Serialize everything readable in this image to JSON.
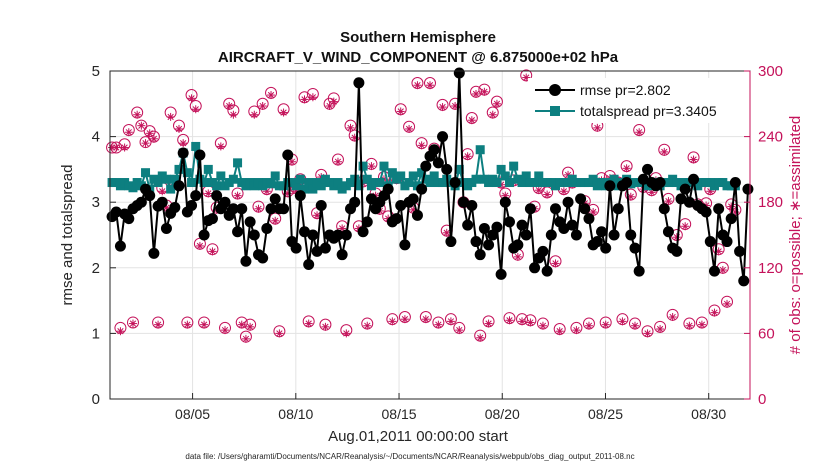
{
  "colors": {
    "rmse": "#000000",
    "totalspread": "#0d7f80",
    "obs": "#c4125a",
    "grid": "#e3e3e3",
    "axis": "#262626"
  },
  "chart_data": {
    "type": "line",
    "title": "Southern Hemisphere",
    "subtitle": "AIRCRAFT_V_WIND_COMPONENT @ 6.875000e+02 hPa",
    "xlabel": "Aug.01,2011 00:00:00 start",
    "ylabel": "rmse and totalspread",
    "ylabel_right": "# of obs: o=possible; ∗=assimilated",
    "footer": "data file: /Users/gharamti/Documents/NCAR/Reanalysis/~/Documents/NCAR/Reanalysis/webpub/obs_diag_output_2011-08.nc",
    "xlim": [
      1,
      32
    ],
    "ylim": [
      0,
      5
    ],
    "ylim_right": [
      0,
      300
    ],
    "x_ticks": [
      5,
      10,
      15,
      20,
      25,
      30
    ],
    "x_tick_labels": [
      "08/05",
      "08/10",
      "08/15",
      "08/20",
      "08/25",
      "08/30"
    ],
    "y_ticks": [
      "0",
      "1",
      "2",
      "3",
      "4",
      "5"
    ],
    "y_ticks_right": [
      "0",
      "60",
      "120",
      "180",
      "240",
      "300"
    ],
    "legend": {
      "placement": "top-right",
      "entries": [
        "rmse pr=2.802",
        "totalspread pr=3.3405"
      ]
    },
    "series": [
      {
        "name": "rmse",
        "label": "rmse pr=2.802",
        "axis": "left",
        "values": [
          2.78,
          2.85,
          2.33,
          2.82,
          2.75,
          2.9,
          2.95,
          3.0,
          3.2,
          3.1,
          2.22,
          2.94,
          3.0,
          2.6,
          2.83,
          2.92,
          3.25,
          3.75,
          2.85,
          2.95,
          3.1,
          3.72,
          2.5,
          2.72,
          2.75,
          3.1,
          2.9,
          3.0,
          2.8,
          2.9,
          2.55,
          2.9,
          2.1,
          2.7,
          2.5,
          2.2,
          2.15,
          2.6,
          2.9,
          3.05,
          2.9,
          2.9,
          3.72,
          2.4,
          2.3,
          3.1,
          2.55,
          2.05,
          2.5,
          2.25,
          2.95,
          2.3,
          2.5,
          2.45,
          2.5,
          2.2,
          2.5,
          2.9,
          3.0,
          4.82,
          2.55,
          2.7,
          3.05,
          2.9,
          3.0,
          3.1,
          3.2,
          2.7,
          2.75,
          2.95,
          2.35,
          3.0,
          3.05,
          2.8,
          3.2,
          3.55,
          3.7,
          3.8,
          3.6,
          4.0,
          3.5,
          2.4,
          3.3,
          4.97,
          3.0,
          2.65,
          2.95,
          2.4,
          2.2,
          2.6,
          2.35,
          2.5,
          2.62,
          1.9,
          3.0,
          2.7,
          2.3,
          2.35,
          2.65,
          2.5,
          2.9,
          2.0,
          2.15,
          2.25,
          1.95,
          2.5,
          2.9,
          2.7,
          2.6,
          3.0,
          2.65,
          2.5,
          3.05,
          2.9,
          2.75,
          2.35,
          2.4,
          2.55,
          2.3,
          3.25,
          2.5,
          2.9,
          3.25,
          3.3,
          2.5,
          2.3,
          1.95,
          3.35,
          3.5,
          3.3,
          3.25,
          3.3,
          2.9,
          2.55,
          2.3,
          2.25,
          3.05,
          3.2,
          3.0,
          3.35,
          2.95,
          2.9,
          2.85,
          2.4,
          1.95,
          2.9,
          2.5,
          2.4,
          2.75,
          3.3,
          2.25,
          1.8,
          3.2
        ]
      },
      {
        "name": "totalspread",
        "label": "totalspread pr=3.3405",
        "axis": "left",
        "values": [
          3.3,
          3.3,
          3.25,
          3.3,
          3.25,
          3.22,
          3.3,
          3.25,
          3.45,
          3.2,
          3.35,
          3.3,
          3.4,
          3.35,
          3.2,
          3.35,
          3.5,
          3.75,
          3.45,
          3.3,
          3.85,
          3.35,
          3.3,
          3.5,
          3.3,
          3.25,
          3.4,
          3.25,
          3.3,
          3.35,
          3.6,
          3.3,
          3.25,
          3.3,
          3.25,
          3.3,
          3.25,
          3.3,
          3.28,
          3.4,
          3.25,
          3.25,
          3.3,
          3.3,
          3.25,
          3.35,
          3.2,
          3.3,
          3.2,
          3.3,
          3.25,
          3.35,
          3.3,
          3.25,
          3.3,
          3.2,
          3.25,
          3.3,
          3.35,
          3.25,
          3.55,
          3.35,
          3.25,
          3.3,
          3.3,
          3.55,
          3.25,
          3.45,
          3.35,
          3.4,
          3.25,
          3.3,
          3.4,
          3.25,
          3.45,
          3.35,
          3.3,
          3.4,
          3.3,
          3.3,
          3.35,
          3.3,
          3.25,
          3.5,
          3.3,
          3.25,
          3.3,
          3.35,
          3.8,
          3.35,
          3.3,
          3.35,
          3.3,
          3.5,
          3.4,
          3.3,
          3.55,
          3.35,
          3.3,
          3.4,
          3.3,
          3.3,
          3.4,
          3.3,
          3.3,
          3.3,
          3.25,
          3.3,
          3.3,
          3.3,
          3.35,
          3.3,
          3.3,
          3.3,
          3.3,
          3.35,
          3.25,
          3.3,
          3.25,
          3.3,
          3.35,
          3.25,
          3.3,
          3.35,
          3.28,
          3.3,
          3.3,
          3.3,
          3.25,
          3.3,
          3.3,
          3.25,
          3.3,
          3.3,
          3.35,
          3.3,
          3.25,
          3.3,
          3.3,
          3.3,
          3.25,
          3.3,
          3.3,
          3.3,
          3.25,
          3.3,
          3.3,
          3.25,
          3.25,
          3.25
        ]
      }
    ],
    "obs_possible": {
      "name": "possible",
      "axis": "right",
      "values": [
        230,
        230,
        65,
        233,
        246,
        70,
        262,
        250,
        235,
        245,
        240,
        70,
        193,
        177,
        262,
        198,
        250,
        237,
        70,
        278,
        268,
        142,
        70,
        190,
        137,
        175,
        234,
        65,
        270,
        264,
        188,
        70,
        57,
        68,
        263,
        176,
        270,
        192,
        280,
        165,
        62,
        265,
        190,
        219,
        193,
        201,
        276,
        71,
        279,
        170,
        205,
        68,
        270,
        275,
        219,
        158,
        63,
        250,
        241,
        158,
        199,
        69,
        215,
        188,
        174,
        203,
        167,
        73,
        202,
        265,
        75,
        249,
        175,
        289,
        234,
        75,
        289,
        229,
        70,
        269,
        154,
        73,
        270,
        65,
        180,
        224,
        257,
        281,
        58,
        283,
        71,
        262,
        272,
        198,
        188,
        74,
        200,
        132,
        73,
        296,
        72,
        176,
        193,
        69,
        189,
        260,
        126,
        64,
        192,
        207,
        198,
        65,
        267,
        181,
        69,
        173,
        250,
        202,
        70,
        204,
        200,
        198,
        73,
        213,
        187,
        69,
        246,
        194,
        62,
        191,
        202,
        66,
        228,
        183,
        77,
        150,
        285,
        160,
        69,
        221,
        178,
        70,
        179,
        192,
        81,
        137,
        120,
        89,
        178,
        173
      ]
    },
    "obs_assimilated": {
      "name": "assimilated",
      "axis": "right",
      "values": [
        230,
        230,
        62,
        230,
        244,
        69,
        260,
        250,
        234,
        243,
        238,
        68,
        190,
        175,
        258,
        196,
        247,
        234,
        68,
        275,
        265,
        140,
        68,
        188,
        135,
        173,
        231,
        63,
        268,
        260,
        186,
        68,
        55,
        66,
        260,
        174,
        268,
        190,
        278,
        163,
        60,
        262,
        188,
        217,
        190,
        199,
        274,
        69,
        276,
        168,
        203,
        66,
        268,
        272,
        217,
        156,
        60,
        248,
        239,
        156,
        197,
        67,
        213,
        186,
        172,
        201,
        165,
        71,
        200,
        263,
        73,
        247,
        173,
        287,
        232,
        73,
        287,
        227,
        68,
        267,
        152,
        71,
        268,
        63,
        178,
        222,
        255,
        279,
        56,
        281,
        69,
        260,
        270,
        196,
        186,
        72,
        198,
        130,
        71,
        294,
        70,
        174,
        191,
        67,
        187,
        258,
        124,
        62,
        190,
        205,
        196,
        63,
        265,
        179,
        67,
        171,
        248,
        200,
        68,
        202,
        198,
        196,
        71,
        211,
        185,
        67,
        244,
        192,
        60,
        189,
        200,
        64,
        226,
        181,
        75,
        148,
        283,
        158,
        67,
        219,
        176,
        68,
        177,
        190,
        79,
        135,
        118,
        87,
        176,
        171
      ]
    }
  }
}
